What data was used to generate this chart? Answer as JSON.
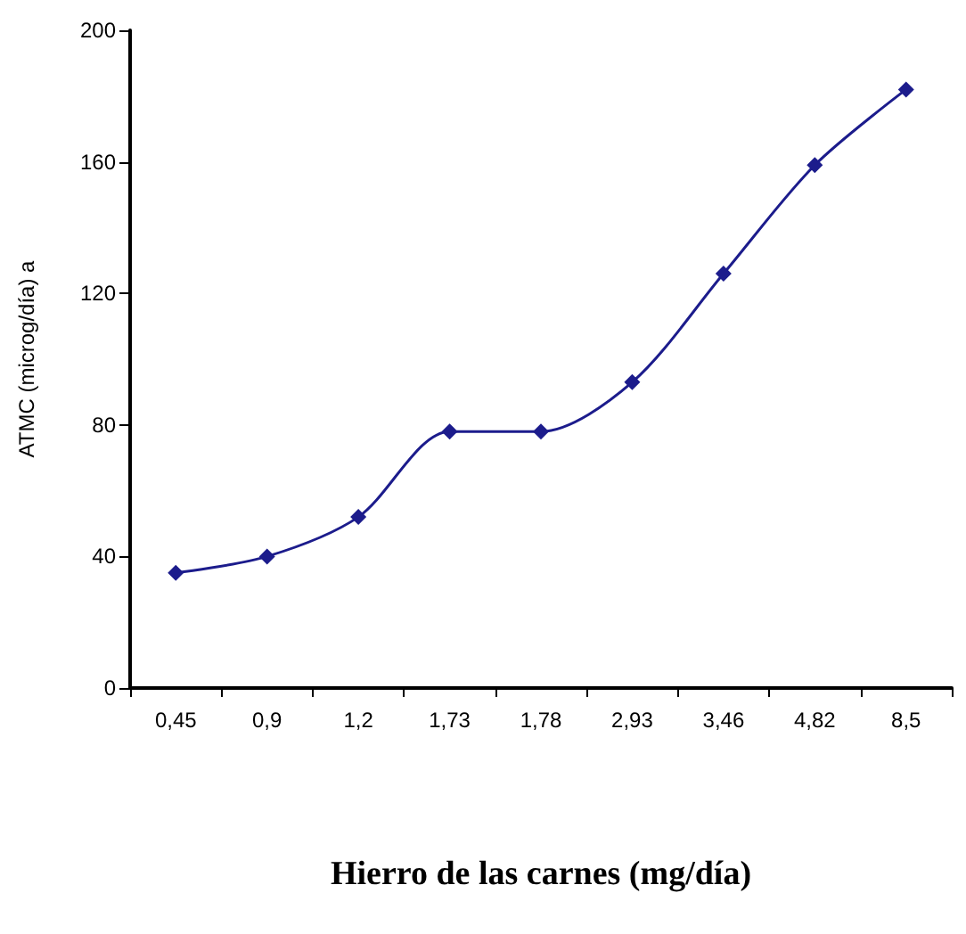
{
  "chart_data": {
    "type": "line",
    "xlabel": "Hierro de las carnes (mg/día)",
    "ylabel": "ATMC (microg/día) a",
    "categories": [
      "0,45",
      "0,9",
      "1,2",
      "1,73",
      "1,78",
      "2,93",
      "3,46",
      "4,82",
      "8,5"
    ],
    "series": [
      {
        "color": "#1c1c8c",
        "values": [
          35,
          40,
          52,
          78,
          78,
          93,
          126,
          159,
          182
        ]
      }
    ],
    "ylim": [
      0,
      200
    ],
    "yticks": [
      0,
      40,
      80,
      120,
      160,
      200
    ],
    "grid": false,
    "marker": "diamond",
    "line_style": "solid"
  }
}
